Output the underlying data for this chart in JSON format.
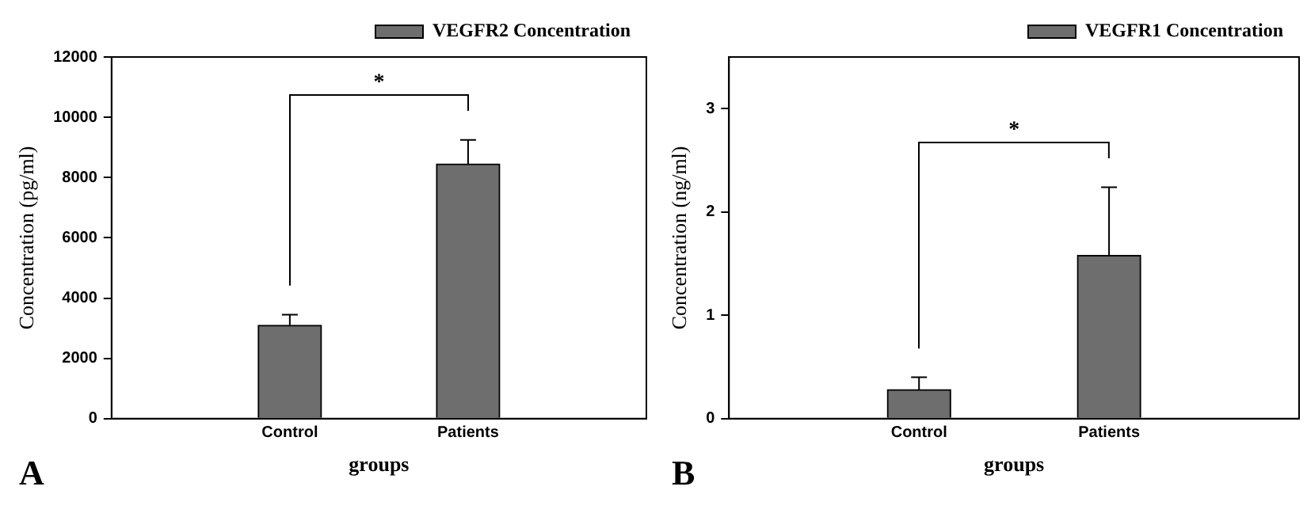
{
  "chart_data": [
    {
      "type": "bar",
      "xlabel": "groups",
      "ylabel": "Concentration (pg/ml)",
      "categories": [
        "Control",
        "Patients"
      ],
      "series": [
        {
          "name": "VEGFR2 Concentration",
          "color": "#6e6e6e",
          "values": [
            3100,
            8450
          ],
          "errors": [
            [
              3100,
              3450
            ],
            [
              8450,
              9250
            ]
          ]
        }
      ],
      "ylim": [
        0,
        12000
      ],
      "yticks": [
        0,
        2000,
        4000,
        6000,
        8000,
        10000,
        12000
      ],
      "grid": false,
      "legend": "top right",
      "annotations": [
        "A",
        "*"
      ]
    },
    {
      "type": "bar",
      "xlabel": "groups",
      "ylabel": "Concentration (ng/ml)",
      "categories": [
        "Control",
        "Patients"
      ],
      "series": [
        {
          "name": "VEGFR1 Concentration",
          "color": "#6e6e6e",
          "values": [
            0.28,
            1.58
          ],
          "errors": [
            [
              0.28,
              0.4
            ],
            [
              1.58,
              2.24
            ]
          ]
        }
      ],
      "ylim": [
        0,
        3.5
      ],
      "yticks": [
        0,
        1,
        2,
        3
      ],
      "grid": false,
      "legend": "top right",
      "annotations": [
        "B",
        "*"
      ]
    }
  ]
}
